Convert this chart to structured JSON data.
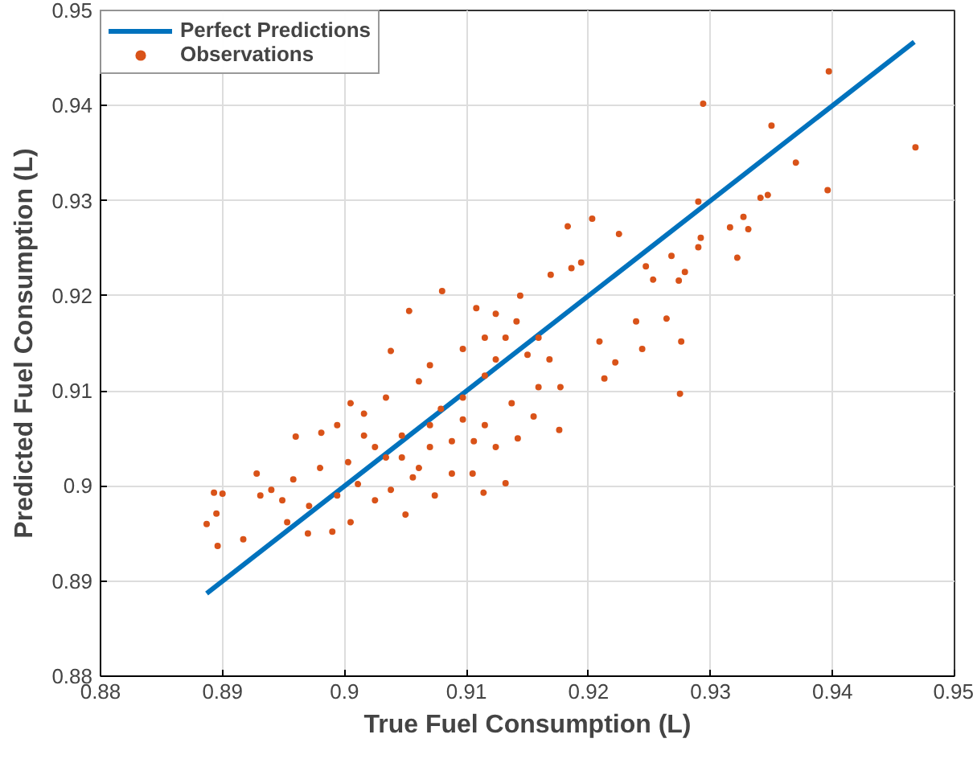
{
  "chart_data": {
    "type": "scatter",
    "xlabel": "True Fuel Consumption (L)",
    "ylabel": "Predicted Fuel Consumption (L)",
    "xlim": [
      0.88,
      0.95
    ],
    "ylim": [
      0.88,
      0.95
    ],
    "xticks": [
      0.88,
      0.89,
      0.9,
      0.91,
      0.92,
      0.93,
      0.94,
      0.95
    ],
    "yticks": [
      0.88,
      0.89,
      0.9,
      0.91,
      0.92,
      0.93,
      0.94,
      0.95
    ],
    "grid": true,
    "legend": "top left",
    "series": [
      {
        "name": "Perfect Predictions",
        "type": "line",
        "color": "#0072bd",
        "marker": "none",
        "line_style": "solid",
        "x": [
          0.8887,
          0.9467
        ],
        "values": [
          0.8887,
          0.9467
        ]
      },
      {
        "name": "Observations",
        "color": "#d95319",
        "marker": "circle",
        "x": [
          0.9294,
          0.9397,
          0.9468,
          0.9396,
          0.935,
          0.937,
          0.9347,
          0.9341,
          0.9327,
          0.9316,
          0.9331,
          0.9322,
          0.929,
          0.9292,
          0.929,
          0.9268,
          0.9279,
          0.9274,
          0.9276,
          0.9275,
          0.9264,
          0.9244,
          0.9203,
          0.9183,
          0.9225,
          0.9194,
          0.9247,
          0.9253,
          0.9222,
          0.9213,
          0.9239,
          0.9209,
          0.908,
          0.9053,
          0.9038,
          0.8893,
          0.89,
          0.8887,
          0.8896,
          0.8917,
          0.8895,
          0.8928,
          0.896,
          0.8981,
          0.9005,
          0.9132,
          0.9114,
          0.9105,
          0.9142,
          0.9176,
          0.9155,
          0.9108,
          0.9124,
          0.9144,
          0.9169,
          0.9186,
          0.899,
          0.897,
          0.9005,
          0.905,
          0.9074,
          0.9088,
          0.9056,
          0.9025,
          0.8953,
          0.8949,
          0.894,
          0.8931,
          0.898,
          0.9003,
          0.9034,
          0.9025,
          0.9047,
          0.907,
          0.9079,
          0.9097,
          0.9115,
          0.9124,
          0.9132,
          0.9115,
          0.9097,
          0.907,
          0.9061,
          0.9034,
          0.9016,
          0.8994,
          0.9097,
          0.9115,
          0.9137,
          0.9159,
          0.9168,
          0.9159,
          0.9141,
          0.9177,
          0.915,
          0.8958,
          0.8971,
          0.8994,
          0.9011,
          0.9038,
          0.9061,
          0.9047,
          0.9016,
          0.907,
          0.9088,
          0.9106,
          0.9124
        ],
        "values": [
          0.9402,
          0.9436,
          0.9356,
          0.9311,
          0.9379,
          0.934,
          0.9306,
          0.9303,
          0.9283,
          0.9272,
          0.927,
          0.924,
          0.9299,
          0.9261,
          0.9251,
          0.9242,
          0.9225,
          0.9216,
          0.9152,
          0.9097,
          0.9176,
          0.9144,
          0.9281,
          0.9273,
          0.9265,
          0.9235,
          0.9231,
          0.9217,
          0.913,
          0.9113,
          0.9173,
          0.9152,
          0.9205,
          0.9184,
          0.9142,
          0.8993,
          0.8992,
          0.896,
          0.8937,
          0.8944,
          0.8971,
          0.9013,
          0.9052,
          0.9056,
          0.9087,
          0.9003,
          0.8993,
          0.9013,
          0.905,
          0.9059,
          0.9073,
          0.9187,
          0.9181,
          0.92,
          0.9222,
          0.9229,
          0.8952,
          0.895,
          0.8962,
          0.897,
          0.899,
          0.9013,
          0.9009,
          0.8985,
          0.8962,
          0.8985,
          0.8996,
          0.899,
          0.9019,
          0.9025,
          0.903,
          0.9041,
          0.9053,
          0.9064,
          0.9081,
          0.9093,
          0.9116,
          0.9133,
          0.9156,
          0.9156,
          0.9144,
          0.9127,
          0.911,
          0.9093,
          0.9076,
          0.9064,
          0.907,
          0.9064,
          0.9087,
          0.9104,
          0.9133,
          0.9156,
          0.9173,
          0.9104,
          0.9138,
          0.9007,
          0.8979,
          0.899,
          0.9002,
          0.8996,
          0.9019,
          0.903,
          0.9053,
          0.9041,
          0.9047,
          0.9047,
          0.9041
        ]
      }
    ]
  }
}
